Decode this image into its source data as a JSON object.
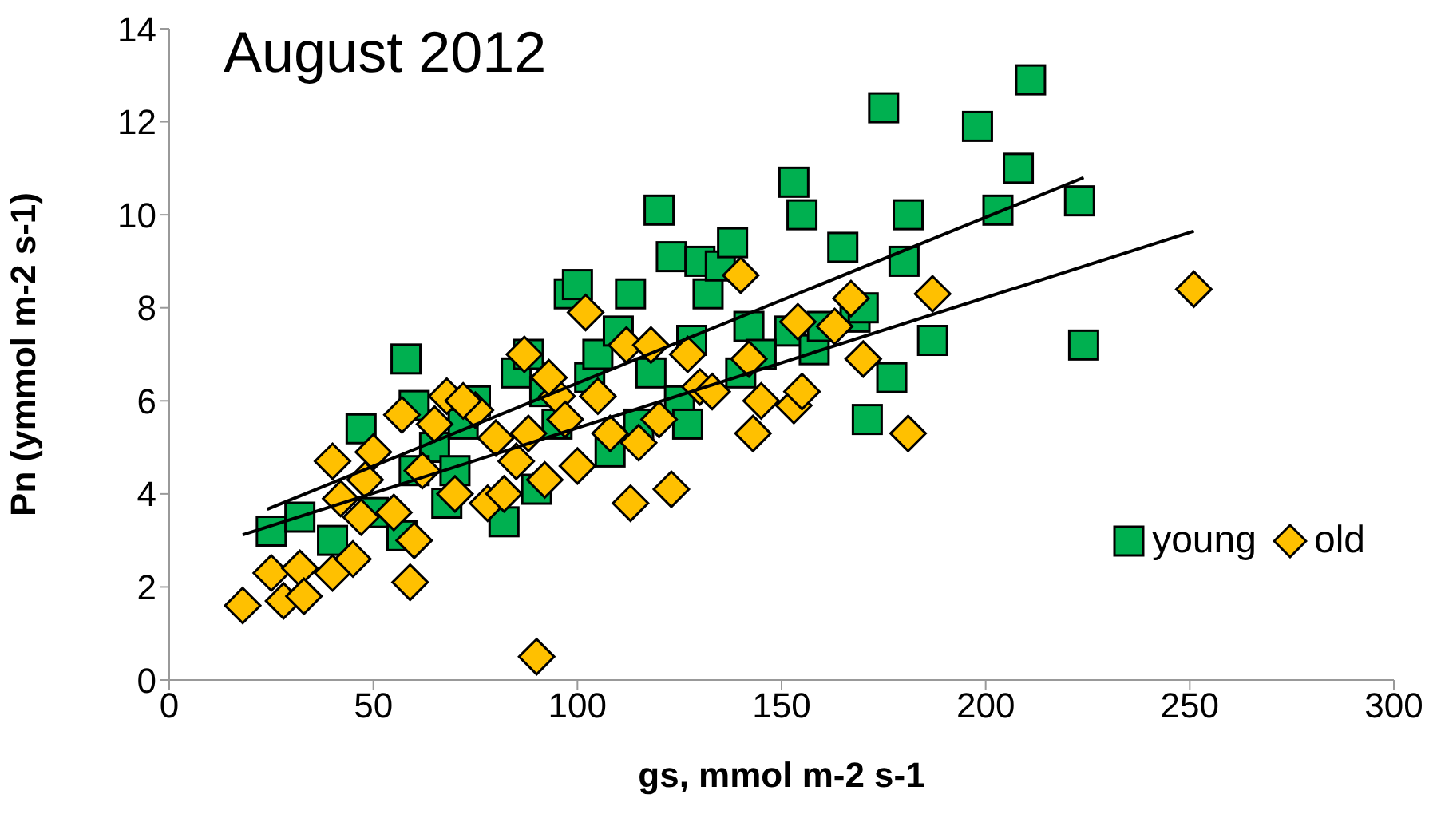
{
  "chart_data": {
    "type": "scatter",
    "title": "August 2012",
    "xlabel": "gs, mmol m-2 s-1",
    "ylabel": "Pn (ymmol m-2 s-1)",
    "xlim": [
      0,
      300
    ],
    "xticks": [
      0,
      50,
      100,
      150,
      200,
      250,
      300
    ],
    "ylim": [
      0,
      14
    ],
    "yticks": [
      0,
      2,
      4,
      6,
      8,
      10,
      12,
      14
    ],
    "grid": false,
    "legend": "bottom right",
    "series": [
      {
        "name": "young",
        "color": "#00b050",
        "marker": "square",
        "x": [
          25,
          32,
          40,
          47,
          58,
          57,
          60,
          65,
          68,
          72,
          75,
          80,
          82,
          85,
          88,
          90,
          95,
          98,
          100,
          103,
          105,
          108,
          110,
          113,
          118,
          120,
          123,
          125,
          128,
          130,
          132,
          135,
          138,
          140,
          142,
          152,
          153,
          155,
          158,
          160,
          165,
          168,
          170,
          171,
          175,
          177,
          180,
          181,
          187,
          198,
          203,
          208,
          211,
          223,
          224,
          92,
          70,
          115,
          127,
          145,
          60,
          50
        ],
        "values": [
          3.2,
          3.5,
          3.0,
          5.4,
          6.9,
          3.1,
          5.9,
          5.0,
          3.8,
          5.5,
          6.0,
          null,
          3.4,
          6.6,
          7.0,
          4.1,
          5.5,
          8.3,
          8.5,
          6.5,
          7.0,
          4.9,
          7.5,
          8.3,
          6.6,
          10.1,
          9.1,
          6.0,
          7.3,
          9.0,
          8.3,
          8.9,
          9.4,
          6.6,
          7.6,
          7.5,
          10.7,
          10.0,
          7.1,
          7.6,
          9.3,
          7.8,
          8.0,
          5.6,
          12.3,
          6.5,
          9.0,
          10.0,
          7.3,
          11.9,
          10.1,
          11.0,
          12.9,
          10.3,
          7.2,
          6.2,
          4.5,
          5.5,
          5.5,
          7.0,
          4.5,
          3.6
        ]
      },
      {
        "name": "old",
        "color": "#ffc000",
        "marker": "diamond",
        "x": [
          18,
          25,
          28,
          32,
          33,
          40,
          40,
          42,
          45,
          47,
          48,
          55,
          57,
          59,
          60,
          62,
          65,
          68,
          70,
          75,
          78,
          80,
          82,
          85,
          87,
          88,
          90,
          92,
          95,
          97,
          100,
          102,
          105,
          108,
          112,
          113,
          115,
          118,
          120,
          123,
          127,
          130,
          133,
          140,
          142,
          143,
          145,
          153,
          154,
          155,
          163,
          167,
          170,
          181,
          187,
          251,
          50,
          72,
          93
        ],
        "values": [
          1.6,
          2.3,
          1.7,
          2.4,
          1.8,
          2.3,
          4.7,
          3.9,
          2.6,
          3.5,
          4.3,
          3.6,
          5.7,
          2.1,
          3.0,
          4.5,
          5.5,
          6.1,
          4.0,
          5.8,
          3.8,
          5.2,
          4.0,
          4.7,
          7.0,
          5.3,
          0.5,
          4.3,
          6.1,
          5.6,
          4.6,
          7.9,
          6.1,
          5.3,
          7.2,
          3.8,
          5.1,
          7.2,
          5.6,
          4.1,
          7.0,
          6.3,
          6.2,
          8.7,
          6.9,
          5.3,
          6.0,
          5.9,
          7.7,
          6.2,
          7.6,
          8.2,
          6.9,
          5.3,
          8.3,
          8.4,
          4.9,
          6.0,
          6.5
        ]
      },
      {
        "type": "line",
        "color": "#000000",
        "marker": "none",
        "x": [
          24,
          224
        ],
        "values": [
          3.67,
          10.8
        ]
      },
      {
        "type": "line",
        "color": "#000000",
        "marker": "none",
        "x": [
          18,
          251
        ],
        "values": [
          3.12,
          9.65
        ]
      }
    ]
  }
}
